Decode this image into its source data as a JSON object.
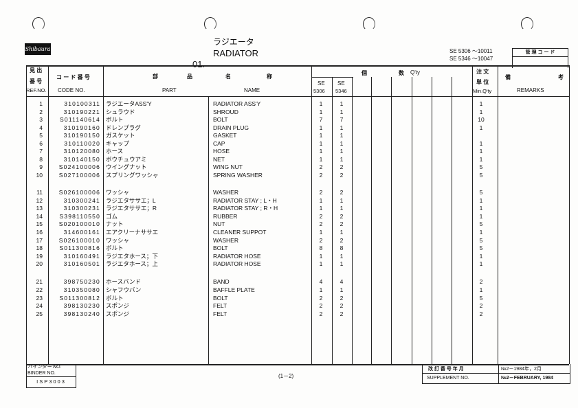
{
  "header": {
    "section_no": "01.",
    "title_jp": "ラジエータ",
    "title_en": "RADIATOR",
    "logo": "Shibaura",
    "serial_1": "SE 5306 ～10011",
    "serial_2": "SE 5346 ～10047",
    "control_code_label": "管 理 コ ー ド"
  },
  "columns": {
    "ref_jp_1": "見 出",
    "ref_jp_2": "番 号",
    "ref": "REF.NO.",
    "code_jp": "コ ー ド 番 号",
    "code": "CODE   NO.",
    "part_jp_1": "部",
    "part_jp_2": "品",
    "part_jp_3": "名",
    "part_jp_4": "称",
    "part": "PART",
    "name": "NAME",
    "qty_jp_1": "個",
    "qty_jp_2": "数",
    "qty": "Q'ty",
    "se1_a": "SE",
    "se1_b": "5306",
    "se2_a": "SE",
    "se2_b": "5346",
    "order_jp_1": "注 文",
    "order_jp_2": "単 位",
    "min_qty": "Min.Q'ty",
    "remarks_jp_1": "備",
    "remarks_jp_2": "考",
    "remarks": "REMARKS"
  },
  "rows": [
    {
      "ref": "1",
      "code": "310100311",
      "jp": "ラジエータASS'Y",
      "name": "RADIATOR ASS'Y",
      "q1": "1",
      "q2": "1",
      "min": "1"
    },
    {
      "ref": "2",
      "code": "310190221",
      "jp": "シュラウド",
      "name": "SHROUD",
      "q1": "1",
      "q2": "1",
      "min": "1"
    },
    {
      "ref": "3",
      "code": "S011140614",
      "jp": "ボルト",
      "name": "BOLT",
      "q1": "7",
      "q2": "7",
      "min": "10"
    },
    {
      "ref": "4",
      "code": "310190160",
      "jp": "ドレンプラグ",
      "name": "DRAIN PLUG",
      "q1": "1",
      "q2": "1",
      "min": "1"
    },
    {
      "ref": "5",
      "code": "310190150",
      "jp": "ガスケット",
      "name": "GASKET",
      "q1": "1",
      "q2": "1",
      "min": ""
    },
    {
      "ref": "6",
      "code": "310110020",
      "jp": "キャップ",
      "name": "CAP",
      "q1": "1",
      "q2": "1",
      "min": "1"
    },
    {
      "ref": "7",
      "code": "310120080",
      "jp": "ホース",
      "name": "HOSE",
      "q1": "1",
      "q2": "1",
      "min": "1"
    },
    {
      "ref": "8",
      "code": "310140150",
      "jp": "ボウチュウアミ",
      "name": "NET",
      "q1": "1",
      "q2": "1",
      "min": "1"
    },
    {
      "ref": "9",
      "code": "S024100006",
      "jp": "ウイングナット",
      "name": "WING NUT",
      "q1": "2",
      "q2": "2",
      "min": "5"
    },
    {
      "ref": "10",
      "code": "S027100006",
      "jp": "スプリングワッシャ",
      "name": "SPRING WASHER",
      "q1": "2",
      "q2": "2",
      "min": "5"
    },
    {
      "ref": "11",
      "code": "S026100006",
      "jp": "ワッシャ",
      "name": "WASHER",
      "q1": "2",
      "q2": "2",
      "min": "5"
    },
    {
      "ref": "12",
      "code": "310300241",
      "jp": "ラジエタササエ；L",
      "name": "RADIATOR STAY ; L・H",
      "q1": "1",
      "q2": "1",
      "min": "1"
    },
    {
      "ref": "13",
      "code": "310300231",
      "jp": "ラジエタササエ；R",
      "name": "RADIATOR STAY ; R・H",
      "q1": "1",
      "q2": "1",
      "min": "1"
    },
    {
      "ref": "14",
      "code": "S398110550",
      "jp": "ゴム",
      "name": "RUBBER",
      "q1": "2",
      "q2": "2",
      "min": "1"
    },
    {
      "ref": "15",
      "code": "S020100010",
      "jp": "ナット",
      "name": "NUT",
      "q1": "2",
      "q2": "2",
      "min": "5"
    },
    {
      "ref": "16",
      "code": "314600161",
      "jp": "エアクリーナササエ",
      "name": "CLEANER SUPPOT",
      "q1": "1",
      "q2": "1",
      "min": "1"
    },
    {
      "ref": "17",
      "code": "S026100010",
      "jp": "ワッシャ",
      "name": "WASHER",
      "q1": "2",
      "q2": "2",
      "min": "5"
    },
    {
      "ref": "18",
      "code": "S011300816",
      "jp": "ボルト",
      "name": "BOLT",
      "q1": "8",
      "q2": "8",
      "min": "5"
    },
    {
      "ref": "19",
      "code": "310160491",
      "jp": "ラジエタホース；下",
      "name": "RADIATOR HOSE",
      "q1": "1",
      "q2": "1",
      "min": "1"
    },
    {
      "ref": "20",
      "code": "310160501",
      "jp": "ラジエタホース；上",
      "name": "RADIATOR HOSE",
      "q1": "1",
      "q2": "1",
      "min": "1"
    },
    {
      "ref": "21",
      "code": "398750230",
      "jp": "ホースバンド",
      "name": "BAND",
      "q1": "4",
      "q2": "4",
      "min": "2"
    },
    {
      "ref": "22",
      "code": "310350080",
      "jp": "シャフウバン",
      "name": "BAFFLE PLATE",
      "q1": "1",
      "q2": "1",
      "min": "1"
    },
    {
      "ref": "23",
      "code": "S011300812",
      "jp": "ボルト",
      "name": "BOLT",
      "q1": "2",
      "q2": "2",
      "min": "5"
    },
    {
      "ref": "24",
      "code": "398130230",
      "jp": "スポンジ",
      "name": "FELT",
      "q1": "2",
      "q2": "2",
      "min": "2"
    },
    {
      "ref": "25",
      "code": "398130240",
      "jp": "スポンジ",
      "name": "FELT",
      "q1": "2",
      "q2": "2",
      "min": "2"
    }
  ],
  "footer": {
    "binder_jp": "バインダー NO.",
    "binder_en": "BINDER  NO.",
    "binder_no": "ISP3003",
    "page": "(1－2)",
    "supplement_jp": "改 訂 番 号 年 月",
    "supplement_en": "SUPPLEMENT NO.",
    "supplement_jp_value": "№2－1984年，2月",
    "supplement_en_value": "№2－FEBRUARY, 1984"
  }
}
